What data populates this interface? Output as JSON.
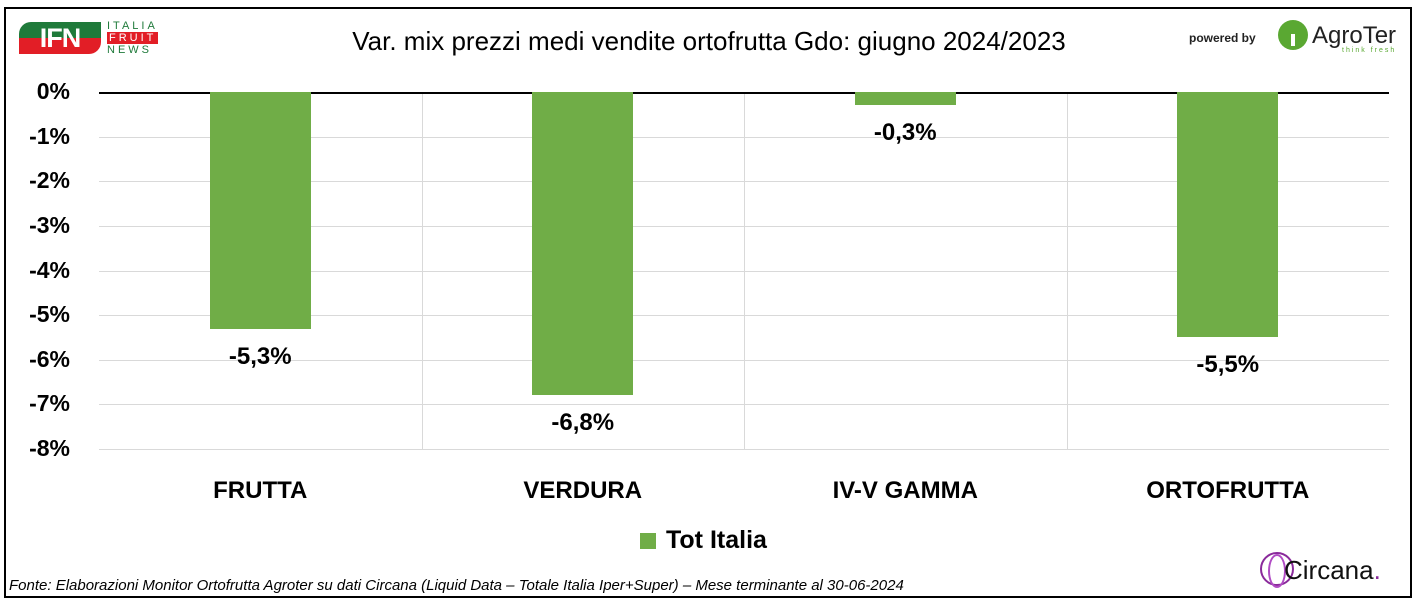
{
  "header": {
    "title": "Var. mix prezzi medi vendite ortofrutta Gdo: giugno 2024/2023",
    "logo_left": {
      "badge": "IFN",
      "lines": [
        "ITALIA",
        "FRUIT",
        "NEWS"
      ]
    },
    "powered_by": "powered by",
    "logo_right": {
      "name": "AgroTer",
      "tagline": "think fresh"
    }
  },
  "footer": {
    "source": "Fonte: Elaborazioni Monitor Ortofrutta Agroter su dati Circana (Liquid Data – Totale Italia Iper+Super) – Mese terminante al 30-06-2024",
    "logo": {
      "name": "Circana",
      "dot": "."
    }
  },
  "colors": {
    "bar": "#70ad47",
    "ifn_green": "#1f7a3a",
    "ifn_red": "#e21e26",
    "circana": "#8a2a9b"
  },
  "chart_data": {
    "type": "bar",
    "title": "Var. mix prezzi medi vendite ortofrutta Gdo: giugno 2024/2023",
    "categories": [
      "FRUTTA",
      "VERDURA",
      "IV-V GAMMA",
      "ORTOFRUTTA"
    ],
    "series": [
      {
        "name": "Tot Italia",
        "values": [
          -5.3,
          -6.8,
          -0.3,
          -5.5
        ]
      }
    ],
    "value_labels": [
      "-5,3%",
      "-6,8%",
      "-0,3%",
      "-5,5%"
    ],
    "xlabel": "",
    "ylabel": "",
    "ylim": [
      -8,
      0
    ],
    "yticks": [
      "0%",
      "-1%",
      "-2%",
      "-3%",
      "-4%",
      "-5%",
      "-6%",
      "-7%",
      "-8%"
    ],
    "grid": true,
    "legend_position": "bottom"
  }
}
